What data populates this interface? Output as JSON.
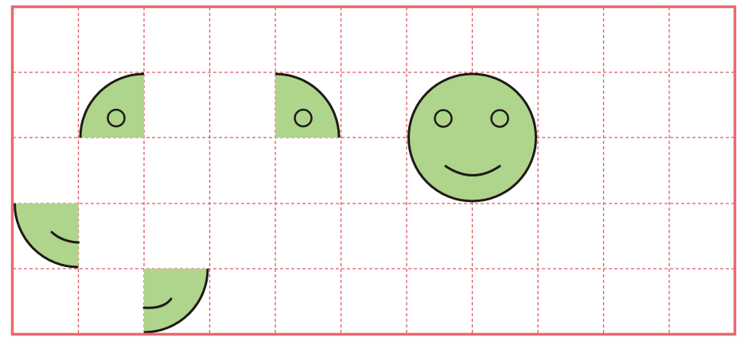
{
  "colors": {
    "background": "#ffffff",
    "grid_border": "#e8696e",
    "grid_dash": "#e05a63",
    "shape_fill": "#aed58b",
    "outline": "#1f1a17"
  },
  "grid": {
    "columns": 11,
    "rows": 5
  },
  "pieces": [
    {
      "name": "quarter-piece-top-left-with-eye",
      "type": "quarter-circle",
      "quadrant": "top-left",
      "feature": "eye"
    },
    {
      "name": "quarter-piece-top-right-with-eye",
      "type": "quarter-circle",
      "quadrant": "top-right",
      "feature": "eye"
    },
    {
      "name": "quarter-piece-bottom-left-with-smile",
      "type": "quarter-circle",
      "quadrant": "bottom-left",
      "feature": "smile"
    },
    {
      "name": "quarter-piece-bottom-right-with-smile",
      "type": "quarter-circle",
      "quadrant": "bottom-right",
      "feature": "smile"
    },
    {
      "name": "smiley-face",
      "type": "full-circle",
      "features": [
        "left-eye",
        "right-eye",
        "smile"
      ]
    }
  ]
}
